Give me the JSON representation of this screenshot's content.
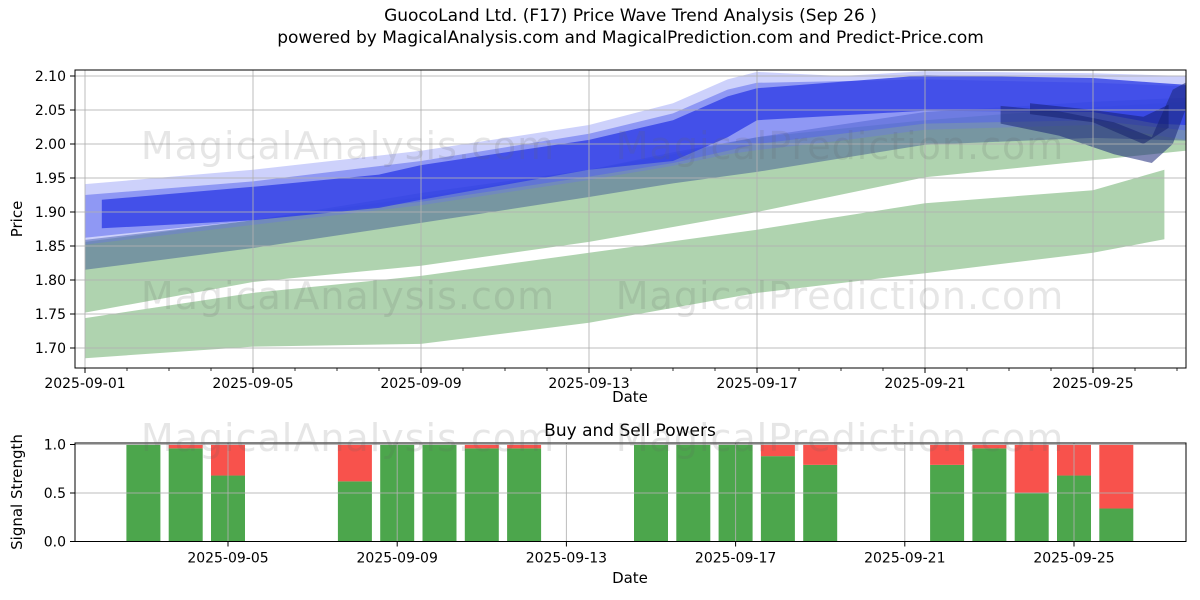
{
  "figure": {
    "title_line1": "GuocoLand Ltd. (F17) Price Wave Trend Analysis (Sep 26 )",
    "title_line2": "powered by MagicalAnalysis.com and MagicalPrediction.com and Predict-Price.com"
  },
  "watermarks": {
    "left": "MagicalAnalysis.com",
    "right": "MagicalPrediction.com"
  },
  "colors": {
    "band_green": "rgba(96,168,96,0.50)",
    "slate_blue": "rgba(72,100,150,0.55)",
    "blue_outer": "rgba(104,116,242,0.33)",
    "blue_mid": "rgba(82,96,238,0.50)",
    "blue_core": "rgba(47,62,230,0.80)",
    "navy": "rgba(26,38,120,0.55)",
    "navy_dark": "rgba(18,28,105,0.50)",
    "buy_green": "#4ca64c",
    "sell_red": "#f8524c",
    "grid": "rgba(176,176,176,0.85)",
    "spine": "#000000"
  },
  "chart_data": [
    {
      "id": "price_wave",
      "type": "area",
      "xlabel": "Date",
      "ylabel": "Price",
      "ylim": [
        1.671,
        2.109
      ],
      "xlim_days": [
        -0.24,
        26.2
      ],
      "grid": true,
      "ytick_labels": [
        "2.10",
        "2.05",
        "2.00",
        "1.95",
        "1.90",
        "1.85",
        "1.80",
        "1.75",
        "1.70"
      ],
      "ytick_values": [
        2.1,
        2.05,
        2.0,
        1.95,
        1.9,
        1.85,
        1.8,
        1.75,
        1.7
      ],
      "xtick_labels": [
        "2025-09-01",
        "2025-09-05",
        "2025-09-09",
        "2025-09-13",
        "2025-09-17",
        "2025-09-21",
        "2025-09-25"
      ],
      "xtick_days": [
        0,
        4,
        8,
        12,
        16,
        20,
        24
      ],
      "bands": [
        {
          "name": "lower-green-band",
          "color_key": "band_green",
          "days": [
            0,
            4,
            8,
            12,
            16,
            20,
            24,
            25.7
          ],
          "top": [
            1.744,
            1.781,
            1.806,
            1.84,
            1.874,
            1.913,
            1.932,
            1.962
          ],
          "bottom": [
            1.685,
            1.702,
            1.706,
            1.737,
            1.781,
            1.81,
            1.84,
            1.86
          ]
        },
        {
          "name": "upper-green-band",
          "color_key": "band_green",
          "days": [
            0,
            4,
            8,
            12,
            14,
            16,
            20,
            24,
            26.2
          ],
          "top": [
            1.856,
            1.888,
            1.922,
            1.962,
            1.985,
            2.01,
            2.035,
            2.054,
            2.062
          ],
          "bottom": [
            1.752,
            1.797,
            1.821,
            1.856,
            1.878,
            1.9,
            1.951,
            1.976,
            1.99
          ]
        },
        {
          "name": "slate-blue-band",
          "color_key": "slate_blue",
          "days": [
            0,
            4,
            8,
            12,
            14,
            16,
            20,
            24,
            26.2
          ],
          "top": [
            1.859,
            1.888,
            1.928,
            1.962,
            1.988,
            2.01,
            2.047,
            2.062,
            2.068
          ],
          "bottom": [
            1.815,
            1.847,
            1.884,
            1.922,
            1.942,
            1.959,
            1.999,
            2.009,
            2.005
          ]
        },
        {
          "name": "outer-blue-band",
          "color_key": "blue_outer",
          "days": [
            0,
            4,
            8,
            12,
            14,
            15.3,
            16,
            18,
            20,
            24,
            26.2
          ],
          "top": [
            1.941,
            1.962,
            1.99,
            2.028,
            2.06,
            2.095,
            2.106,
            2.1,
            2.107,
            2.104,
            2.1
          ],
          "bottom": [
            1.852,
            1.881,
            1.91,
            1.947,
            1.968,
            1.985,
            1.991,
            2.005,
            2.021,
            2.028,
            2.006
          ]
        },
        {
          "name": "mid-blue-band",
          "color_key": "blue_mid",
          "days": [
            0,
            4,
            8,
            12,
            14,
            15.3,
            16,
            20,
            24,
            26.2
          ],
          "top": [
            1.925,
            1.945,
            1.975,
            2.015,
            2.045,
            2.08,
            2.09,
            2.095,
            2.09,
            2.085
          ],
          "bottom": [
            1.862,
            1.888,
            1.915,
            1.952,
            1.972,
            1.99,
            2.0,
            2.03,
            2.035,
            2.02
          ]
        },
        {
          "name": "core-blue-band",
          "color_key": "blue_core",
          "days": [
            0.4,
            4,
            7,
            8,
            12,
            14,
            15.3,
            16,
            20,
            24,
            25.5,
            26.2
          ],
          "top": [
            1.918,
            1.937,
            1.955,
            1.969,
            2.006,
            2.035,
            2.07,
            2.082,
            2.101,
            2.097,
            2.09,
            2.087
          ],
          "bottom": [
            1.876,
            1.888,
            1.906,
            1.918,
            1.962,
            1.975,
            2.01,
            2.035,
            2.049,
            2.047,
            2.03,
            2.028
          ]
        },
        {
          "name": "navy-wedge-band",
          "color_key": "navy",
          "days": [
            21.8,
            23.2,
            24.5,
            25.4,
            25.9,
            26.2
          ],
          "top": [
            2.056,
            2.048,
            2.032,
            2.01,
            2.08,
            2.09
          ],
          "bottom": [
            2.03,
            2.012,
            1.985,
            1.972,
            2.0,
            2.05
          ]
        },
        {
          "name": "navy-wedge-dark-band",
          "color_key": "navy_dark",
          "days": [
            22.5,
            24,
            25.2,
            25.8
          ],
          "top": [
            2.06,
            2.05,
            2.04,
            2.058
          ],
          "bottom": [
            2.044,
            2.032,
            2.0,
            2.024
          ]
        }
      ]
    },
    {
      "id": "buy_sell",
      "type": "bar",
      "title": "Buy and Sell Powers",
      "xlabel": "Date",
      "ylabel": "Signal Strength",
      "ylim": [
        0.0,
        1.01
      ],
      "grid": true,
      "ytick_labels": [
        "0.0",
        "0.5",
        "1.0"
      ],
      "ytick_values": [
        0.0,
        0.5,
        1.0
      ],
      "xtick_labels": [
        "2025-09-05",
        "2025-09-09",
        "2025-09-13",
        "2025-09-17",
        "2025-09-21",
        "2025-09-25"
      ],
      "xtick_days": [
        4,
        8,
        12,
        16,
        20,
        24
      ],
      "series": [
        {
          "name": "Buy",
          "color_key": "buy_green"
        },
        {
          "name": "Sell",
          "color_key": "sell_red"
        }
      ],
      "bars": [
        {
          "date": "2025-09-03",
          "day": 2,
          "buy": 1.0,
          "sell": 0.0
        },
        {
          "date": "2025-09-04",
          "day": 3,
          "buy": 0.96,
          "sell": 0.04
        },
        {
          "date": "2025-09-05",
          "day": 4,
          "buy": 0.68,
          "sell": 0.32
        },
        {
          "date": "2025-09-08",
          "day": 7,
          "buy": 0.62,
          "sell": 0.38
        },
        {
          "date": "2025-09-09",
          "day": 8,
          "buy": 1.0,
          "sell": 0.0
        },
        {
          "date": "2025-09-10",
          "day": 9,
          "buy": 1.0,
          "sell": 0.0
        },
        {
          "date": "2025-09-11",
          "day": 10,
          "buy": 0.96,
          "sell": 0.04
        },
        {
          "date": "2025-09-12",
          "day": 11,
          "buy": 0.96,
          "sell": 0.04
        },
        {
          "date": "2025-09-15",
          "day": 14,
          "buy": 1.0,
          "sell": 0.0
        },
        {
          "date": "2025-09-16",
          "day": 15,
          "buy": 1.0,
          "sell": 0.0
        },
        {
          "date": "2025-09-17",
          "day": 16,
          "buy": 1.0,
          "sell": 0.0
        },
        {
          "date": "2025-09-18",
          "day": 17,
          "buy": 0.88,
          "sell": 0.12
        },
        {
          "date": "2025-09-19",
          "day": 18,
          "buy": 0.79,
          "sell": 0.21
        },
        {
          "date": "2025-09-22",
          "day": 21,
          "buy": 0.79,
          "sell": 0.21
        },
        {
          "date": "2025-09-23",
          "day": 22,
          "buy": 0.96,
          "sell": 0.04
        },
        {
          "date": "2025-09-24",
          "day": 23,
          "buy": 0.5,
          "sell": 0.5
        },
        {
          "date": "2025-09-25",
          "day": 24,
          "buy": 0.68,
          "sell": 0.32
        },
        {
          "date": "2025-09-26",
          "day": 25,
          "buy": 0.34,
          "sell": 0.66
        }
      ]
    }
  ]
}
